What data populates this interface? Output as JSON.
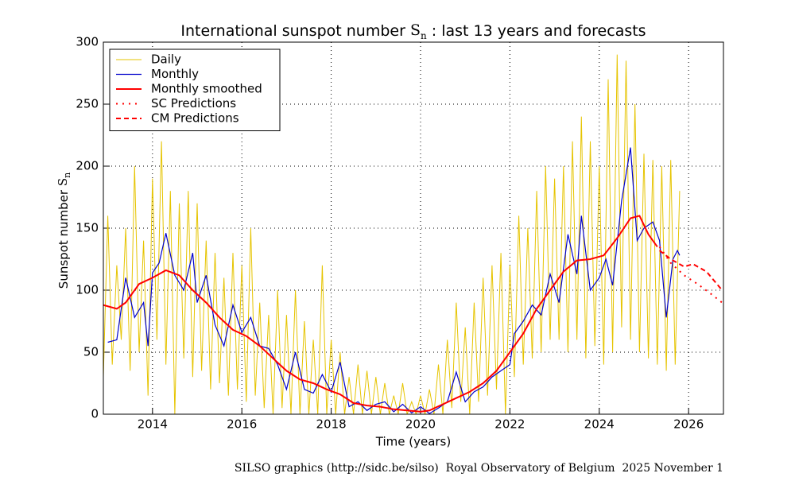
{
  "chart_data": {
    "type": "line",
    "title": "International sunspot number",
    "title_symbol": "S",
    "title_subscript": "n",
    "title_suffix": ": last 13 years and forecasts",
    "xlabel": "Time (years)",
    "ylabel": "Sunspot number",
    "ylabel_symbol": "S",
    "ylabel_subscript": "n",
    "footer": "SILSO graphics (http://sidc.be/silso)  Royal Observatory of Belgium  2025 November 1",
    "xlim": [
      2012.9,
      2026.78
    ],
    "ylim": [
      0,
      300
    ],
    "xticks": [
      2014,
      2016,
      2018,
      2020,
      2022,
      2024,
      2026
    ],
    "yticks": [
      0,
      50,
      100,
      150,
      200,
      250,
      300
    ],
    "grid": true,
    "legend": "upper left",
    "series": [
      {
        "name": "Daily",
        "color": "#e6c400",
        "width": 1,
        "dash": "none",
        "x": [
          2012.9,
          2013.0,
          2013.1,
          2013.2,
          2013.3,
          2013.4,
          2013.5,
          2013.6,
          2013.7,
          2013.8,
          2013.9,
          2014.0,
          2014.1,
          2014.2,
          2014.3,
          2014.4,
          2014.5,
          2014.6,
          2014.7,
          2014.8,
          2014.9,
          2015.0,
          2015.1,
          2015.2,
          2015.3,
          2015.4,
          2015.5,
          2015.6,
          2015.7,
          2015.8,
          2015.9,
          2016.0,
          2016.1,
          2016.2,
          2016.3,
          2016.4,
          2016.5,
          2016.6,
          2016.7,
          2016.8,
          2016.9,
          2017.0,
          2017.1,
          2017.2,
          2017.3,
          2017.4,
          2017.5,
          2017.6,
          2017.7,
          2017.8,
          2017.9,
          2018.0,
          2018.1,
          2018.2,
          2018.3,
          2018.4,
          2018.5,
          2018.6,
          2018.7,
          2018.8,
          2018.9,
          2019.0,
          2019.1,
          2019.2,
          2019.3,
          2019.4,
          2019.5,
          2019.6,
          2019.7,
          2019.8,
          2019.9,
          2020.0,
          2020.1,
          2020.2,
          2020.3,
          2020.4,
          2020.5,
          2020.6,
          2020.7,
          2020.8,
          2020.9,
          2021.0,
          2021.1,
          2021.2,
          2021.3,
          2021.4,
          2021.5,
          2021.6,
          2021.7,
          2021.8,
          2021.9,
          2022.0,
          2022.1,
          2022.2,
          2022.3,
          2022.4,
          2022.5,
          2022.6,
          2022.7,
          2022.8,
          2022.9,
          2023.0,
          2023.1,
          2023.2,
          2023.3,
          2023.4,
          2023.5,
          2023.6,
          2023.7,
          2023.8,
          2023.9,
          2024.0,
          2024.1,
          2024.2,
          2024.3,
          2024.4,
          2024.5,
          2024.6,
          2024.7,
          2024.8,
          2024.9,
          2025.0,
          2025.1,
          2025.2,
          2025.3,
          2025.4,
          2025.5,
          2025.6,
          2025.7,
          2025.8
        ],
        "values": [
          30,
          160,
          40,
          120,
          60,
          150,
          35,
          200,
          50,
          140,
          15,
          190,
          60,
          220,
          40,
          180,
          0,
          170,
          45,
          180,
          30,
          170,
          35,
          140,
          20,
          130,
          25,
          110,
          15,
          130,
          20,
          120,
          10,
          150,
          15,
          90,
          5,
          80,
          0,
          100,
          5,
          80,
          0,
          100,
          0,
          75,
          0,
          60,
          0,
          120,
          0,
          60,
          0,
          50,
          0,
          30,
          0,
          40,
          0,
          35,
          0,
          30,
          0,
          25,
          0,
          15,
          0,
          25,
          0,
          10,
          0,
          15,
          0,
          20,
          0,
          40,
          0,
          60,
          5,
          90,
          10,
          70,
          0,
          90,
          10,
          110,
          15,
          120,
          20,
          130,
          0,
          120,
          30,
          160,
          40,
          150,
          45,
          180,
          50,
          200,
          60,
          190,
          60,
          200,
          50,
          220,
          60,
          240,
          45,
          220,
          55,
          200,
          40,
          270,
          50,
          290,
          70,
          285,
          60,
          250,
          50,
          210,
          45,
          205,
          40,
          200,
          35,
          205,
          40,
          180
        ]
      },
      {
        "name": "Monthly",
        "color": "#0000cc",
        "width": 1.2,
        "dash": "none",
        "x": [
          2013.0,
          2013.2,
          2013.4,
          2013.6,
          2013.8,
          2013.9,
          2014.0,
          2014.15,
          2014.3,
          2014.5,
          2014.7,
          2014.9,
          2015.0,
          2015.2,
          2015.4,
          2015.6,
          2015.8,
          2016.0,
          2016.2,
          2016.4,
          2016.6,
          2016.8,
          2017.0,
          2017.2,
          2017.4,
          2017.6,
          2017.8,
          2018.0,
          2018.2,
          2018.4,
          2018.6,
          2018.8,
          2019.0,
          2019.2,
          2019.4,
          2019.6,
          2019.8,
          2020.0,
          2020.2,
          2020.4,
          2020.6,
          2020.8,
          2021.0,
          2021.2,
          2021.4,
          2021.6,
          2021.8,
          2022.0,
          2022.1,
          2022.3,
          2022.5,
          2022.7,
          2022.9,
          2023.1,
          2023.3,
          2023.5,
          2023.6,
          2023.8,
          2024.0,
          2024.15,
          2024.3,
          2024.5,
          2024.7,
          2024.85,
          2025.0,
          2025.2,
          2025.35,
          2025.5,
          2025.65,
          2025.75,
          2025.8
        ],
        "values": [
          58,
          60,
          110,
          78,
          90,
          55,
          114,
          122,
          146,
          112,
          100,
          130,
          90,
          112,
          72,
          55,
          88,
          66,
          78,
          55,
          53,
          40,
          20,
          50,
          20,
          17,
          32,
          18,
          42,
          6,
          10,
          3,
          8,
          10,
          2,
          8,
          1,
          6,
          0.5,
          5,
          10,
          34,
          10,
          18,
          22,
          30,
          35,
          40,
          65,
          75,
          88,
          80,
          113,
          90,
          145,
          113,
          160,
          100,
          110,
          125,
          104,
          172,
          215,
          140,
          150,
          155,
          140,
          78,
          125,
          132,
          128
        ]
      },
      {
        "name": "Monthly smoothed",
        "color": "#ff0000",
        "width": 2,
        "dash": "none",
        "x": [
          2012.9,
          2013.2,
          2013.4,
          2013.7,
          2014.0,
          2014.3,
          2014.6,
          2014.9,
          2015.2,
          2015.5,
          2015.8,
          2016.1,
          2016.4,
          2016.7,
          2017.0,
          2017.3,
          2017.6,
          2017.9,
          2018.2,
          2018.5,
          2018.8,
          2019.1,
          2019.4,
          2019.7,
          2020.0,
          2020.2,
          2020.5,
          2020.8,
          2021.1,
          2021.4,
          2021.7,
          2022.0,
          2022.3,
          2022.6,
          2022.9,
          2023.2,
          2023.5,
          2023.8,
          2024.1,
          2024.4,
          2024.7,
          2024.9,
          2025.1,
          2025.3
        ],
        "values": [
          88,
          85,
          90,
          105,
          110,
          116,
          112,
          100,
          90,
          78,
          68,
          63,
          55,
          45,
          35,
          28,
          25,
          20,
          16,
          9,
          7,
          6,
          4,
          3,
          2,
          3,
          8,
          13,
          18,
          25,
          35,
          50,
          65,
          85,
          100,
          115,
          124,
          125,
          128,
          142,
          158,
          160,
          145,
          135
        ]
      },
      {
        "name": "SC Predictions",
        "color": "#ff0000",
        "width": 2,
        "dash": "2 6",
        "x": [
          2025.35,
          2025.6,
          2025.9,
          2026.2,
          2026.5,
          2026.75
        ],
        "values": [
          135,
          122,
          112,
          105,
          97,
          90
        ]
      },
      {
        "name": "CM Predictions",
        "color": "#ff0000",
        "width": 2,
        "dash": "6 4",
        "x": [
          2025.35,
          2025.6,
          2025.9,
          2026.1,
          2026.4,
          2026.75
        ],
        "values": [
          132,
          125,
          119,
          121,
          115,
          100
        ]
      }
    ]
  }
}
